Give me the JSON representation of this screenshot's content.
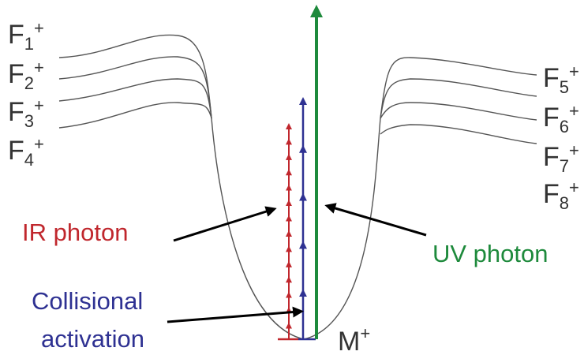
{
  "fragment_levels_left": [
    {
      "base": "F",
      "sub": "1",
      "sup": "+"
    },
    {
      "base": "F",
      "sub": "2",
      "sup": "+"
    },
    {
      "base": "F",
      "sub": "3",
      "sup": "+"
    },
    {
      "base": "F",
      "sub": "4",
      "sup": "+"
    }
  ],
  "fragment_levels_right": [
    {
      "base": "F",
      "sub": "5",
      "sup": "+"
    },
    {
      "base": "F",
      "sub": "6",
      "sup": "+"
    },
    {
      "base": "F",
      "sub": "7",
      "sup": "+"
    },
    {
      "base": "F",
      "sub": "8",
      "sup": "+"
    }
  ],
  "precursor_label": {
    "base": "M",
    "sup": "+"
  },
  "labels": {
    "ir_photon": "IR photon",
    "uv_photon": "UV photon",
    "collisional_line1": "Collisional",
    "collisional_line2": "activation"
  },
  "colors": {
    "ir": "#c0272d",
    "collisional": "#2e3192",
    "uv": "#1e8a3c",
    "curve": "#555555",
    "text": "#333333",
    "pointer": "#000000"
  },
  "activation_steps": {
    "ir_photon_steps": 14,
    "collisional_steps": 5,
    "uv_photon_steps": 1
  }
}
